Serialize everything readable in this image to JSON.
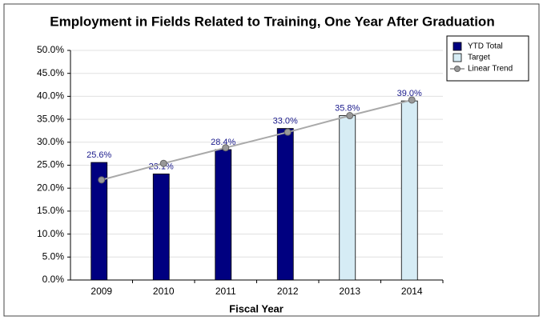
{
  "chart_data": {
    "type": "bar",
    "title": "Employment in Fields Related to Training, One Year After Graduation",
    "x_label": "Fiscal Year",
    "categories": [
      "2009",
      "2010",
      "2011",
      "2012",
      "2013",
      "2014"
    ],
    "series": [
      {
        "name": "YTD Total",
        "type": "bar",
        "color": "#000080",
        "values": [
          25.6,
          23.1,
          28.4,
          33.0,
          null,
          null
        ],
        "value_labels": [
          "25.6%",
          "23.1%",
          "28.4%",
          "33.0%",
          null,
          null
        ]
      },
      {
        "name": "Target",
        "type": "bar",
        "color": "#d6ecf5",
        "values": [
          null,
          null,
          null,
          null,
          35.8,
          39.0
        ],
        "value_labels": [
          null,
          null,
          null,
          null,
          "35.8%",
          "39.0%"
        ]
      },
      {
        "name": "Linear Trend",
        "type": "line",
        "color": "#a9a9a9",
        "values": [
          21.8,
          25.4,
          28.8,
          32.2,
          35.8,
          39.2
        ]
      }
    ],
    "ylim": [
      0,
      50
    ],
    "yticks": [
      {
        "value": 0,
        "label": "0.0%"
      },
      {
        "value": 5,
        "label": "5.0%"
      },
      {
        "value": 10,
        "label": "10.0%"
      },
      {
        "value": 15,
        "label": "15.0%"
      },
      {
        "value": 20,
        "label": "20.0%"
      },
      {
        "value": 25,
        "label": "25.0%"
      },
      {
        "value": 30,
        "label": "30.0%"
      },
      {
        "value": 35,
        "label": "35.0%"
      },
      {
        "value": 40,
        "label": "40.0%"
      },
      {
        "value": 45,
        "label": "45.0%"
      },
      {
        "value": 50,
        "label": "50.0%"
      }
    ],
    "grid": true,
    "legend": "top-right"
  }
}
